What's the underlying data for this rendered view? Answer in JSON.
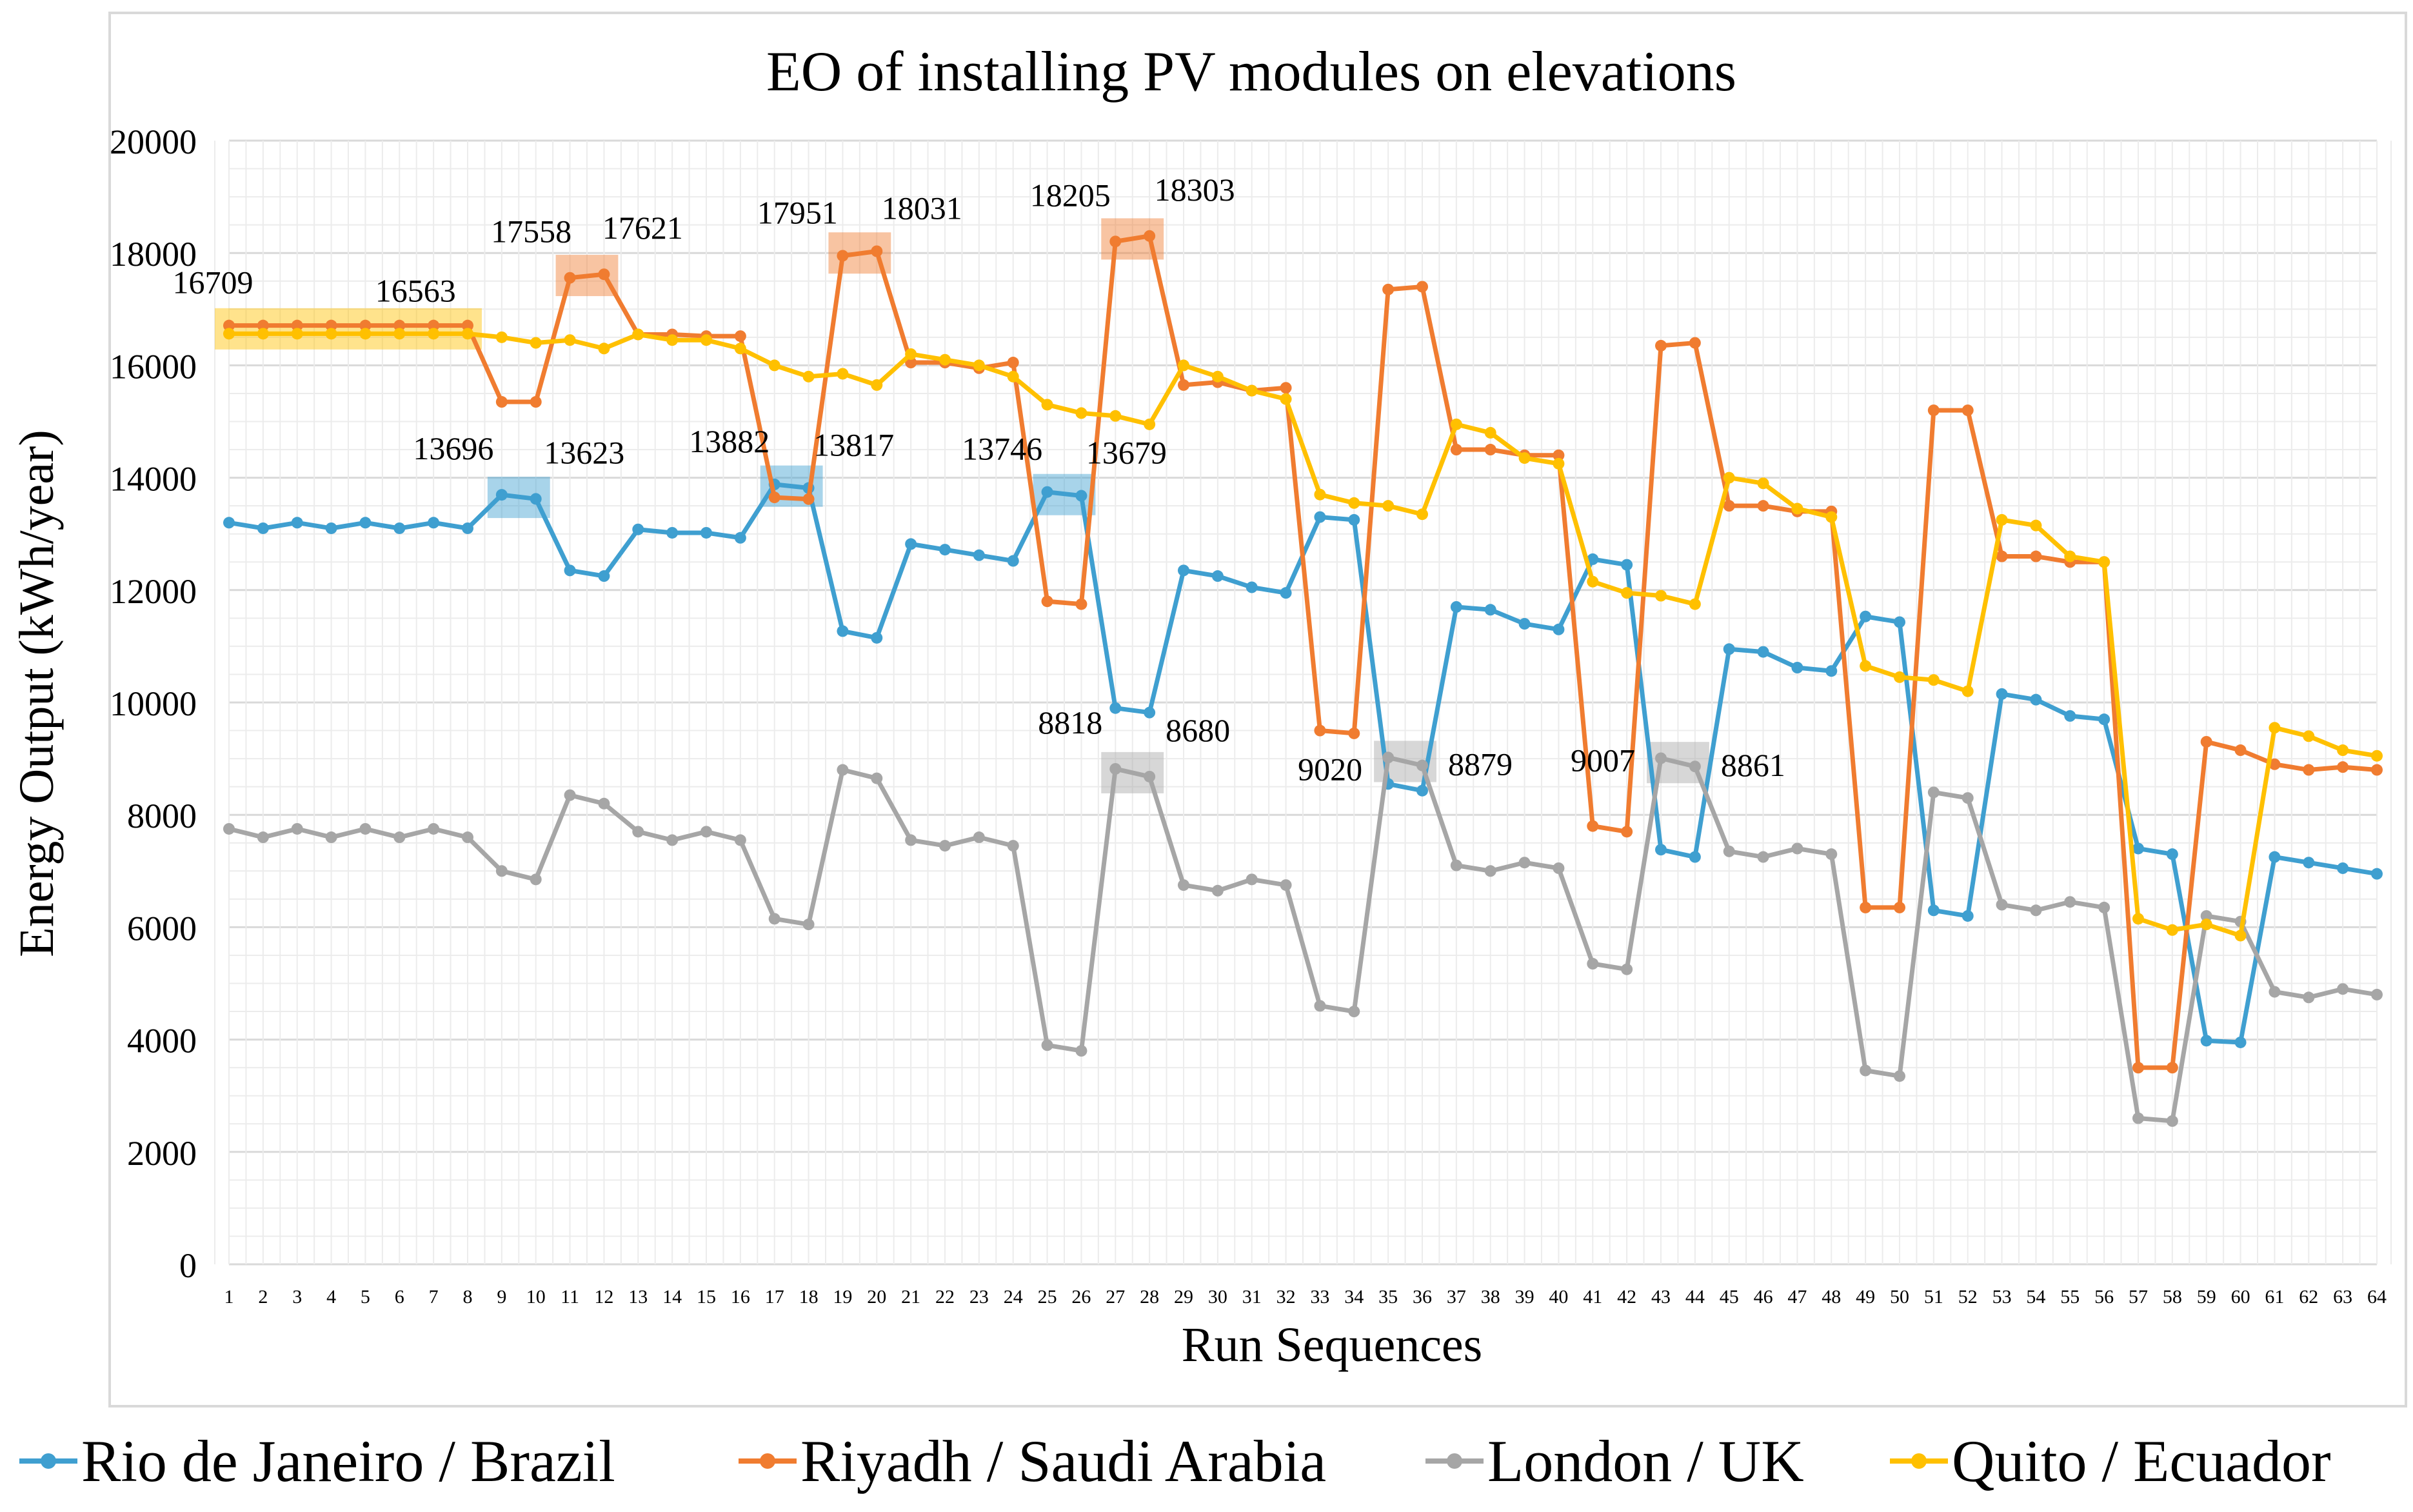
{
  "chart_data": {
    "type": "line",
    "title": "EO of installing  PV modules  on elevations",
    "xlabel": "Run Sequences",
    "ylabel": "Energy Output (kWh/year)",
    "ylim": [
      0,
      20000
    ],
    "yticks": [
      0,
      2000,
      4000,
      6000,
      8000,
      10000,
      12000,
      14000,
      16000,
      18000,
      20000
    ],
    "grid": true,
    "legend_position": "bottom",
    "x": [
      1,
      2,
      3,
      4,
      5,
      6,
      7,
      8,
      9,
      10,
      11,
      12,
      13,
      14,
      15,
      16,
      17,
      18,
      19,
      20,
      21,
      22,
      23,
      24,
      25,
      26,
      27,
      28,
      29,
      30,
      31,
      32,
      33,
      34,
      35,
      36,
      37,
      38,
      39,
      40,
      41,
      42,
      43,
      44,
      45,
      46,
      47,
      48,
      49,
      50,
      51,
      52,
      53,
      54,
      55,
      56,
      57,
      58,
      59,
      60,
      61,
      62,
      63,
      64
    ],
    "series": [
      {
        "name": "Rio de Janeiro / Brazil",
        "color": "#3f9fd0",
        "values": [
          13200,
          13100,
          13200,
          13100,
          13200,
          13100,
          13200,
          13100,
          13696,
          13623,
          12350,
          12250,
          13080,
          13020,
          13020,
          12930,
          13882,
          13817,
          11270,
          11150,
          12820,
          12720,
          12620,
          12520,
          13746,
          13679,
          9900,
          9820,
          12350,
          12250,
          12050,
          11950,
          13300,
          13250,
          8550,
          8430,
          11700,
          11650,
          11400,
          11300,
          12550,
          12450,
          7380,
          7250,
          10950,
          10900,
          10620,
          10560,
          11530,
          11430,
          6300,
          6200,
          10150,
          10050,
          9760,
          9700,
          7400,
          7300,
          3980,
          3950,
          7250,
          7150,
          7050,
          6950
        ]
      },
      {
        "name": "Riyadh / Saudi Arabia",
        "color": "#f07c30",
        "values": [
          16709,
          16709,
          16709,
          16709,
          16709,
          16709,
          16709,
          16709,
          15350,
          15350,
          17558,
          17621,
          16550,
          16550,
          16520,
          16520,
          13650,
          13620,
          17951,
          18031,
          16050,
          16050,
          15950,
          16050,
          11800,
          11750,
          18205,
          18303,
          15650,
          15700,
          15550,
          15600,
          9500,
          9450,
          17350,
          17400,
          14500,
          14500,
          14400,
          14400,
          7800,
          7700,
          16350,
          16400,
          13500,
          13500,
          13400,
          13400,
          6350,
          6350,
          15200,
          15200,
          12600,
          12600,
          12500,
          12500,
          3500,
          3500,
          9300,
          9150,
          8900,
          8800,
          8850,
          8800
        ]
      },
      {
        "name": "London / UK",
        "color": "#a6a6a6",
        "values": [
          7750,
          7600,
          7750,
          7600,
          7750,
          7600,
          7750,
          7600,
          7000,
          6850,
          8350,
          8200,
          7700,
          7550,
          7700,
          7550,
          6150,
          6050,
          8800,
          8650,
          7550,
          7450,
          7600,
          7450,
          3900,
          3800,
          8818,
          8680,
          6750,
          6650,
          6850,
          6750,
          4600,
          4500,
          9020,
          8879,
          7100,
          7000,
          7150,
          7050,
          5350,
          5250,
          9007,
          8861,
          7350,
          7250,
          7400,
          7300,
          3450,
          3350,
          8400,
          8300,
          6400,
          6300,
          6450,
          6350,
          2600,
          2550,
          6200,
          6100,
          4850,
          4750,
          4900,
          4800
        ]
      },
      {
        "name": "Quito / Ecuador",
        "color": "#ffc000",
        "values": [
          16563,
          16563,
          16563,
          16563,
          16563,
          16563,
          16563,
          16563,
          16500,
          16400,
          16450,
          16300,
          16550,
          16450,
          16450,
          16300,
          16000,
          15800,
          15850,
          15650,
          16200,
          16100,
          16000,
          15800,
          15300,
          15150,
          15100,
          14950,
          16000,
          15800,
          15550,
          15400,
          13700,
          13550,
          13500,
          13350,
          14950,
          14800,
          14350,
          14250,
          12150,
          11950,
          11900,
          11750,
          14000,
          13900,
          13450,
          13300,
          10650,
          10450,
          10400,
          10200,
          13250,
          13150,
          12600,
          12500,
          6150,
          5950,
          6050,
          5850,
          9550,
          9400,
          9150,
          9050
        ]
      }
    ],
    "annotations": [
      {
        "text": "16709",
        "x": 1,
        "y": 16709,
        "color": "#ffc000"
      },
      {
        "text": "16563",
        "x": 6,
        "y": 16563,
        "color": "#ffc000"
      },
      {
        "text": "17558",
        "x": 11,
        "y": 17558,
        "color": "#f07c30"
      },
      {
        "text": "17621",
        "x": 12,
        "y": 17621,
        "color": "#f07c30"
      },
      {
        "text": "17951",
        "x": 19,
        "y": 17951,
        "color": "#f07c30"
      },
      {
        "text": "18031",
        "x": 20,
        "y": 18031,
        "color": "#f07c30"
      },
      {
        "text": "18205",
        "x": 27,
        "y": 18205,
        "color": "#f07c30"
      },
      {
        "text": "18303",
        "x": 28,
        "y": 18303,
        "color": "#f07c30"
      },
      {
        "text": "13696",
        "x": 9,
        "y": 13696,
        "color": "#3f9fd0"
      },
      {
        "text": "13623",
        "x": 10,
        "y": 13623,
        "color": "#3f9fd0"
      },
      {
        "text": "13882",
        "x": 17,
        "y": 13882,
        "color": "#3f9fd0"
      },
      {
        "text": "13817",
        "x": 18,
        "y": 13817,
        "color": "#3f9fd0"
      },
      {
        "text": "13746",
        "x": 25,
        "y": 13746,
        "color": "#3f9fd0"
      },
      {
        "text": "13679",
        "x": 26,
        "y": 13679,
        "color": "#3f9fd0"
      },
      {
        "text": "8818",
        "x": 27,
        "y": 8818,
        "color": "#a6a6a6"
      },
      {
        "text": "8680",
        "x": 28,
        "y": 8680,
        "color": "#a6a6a6"
      },
      {
        "text": "9020",
        "x": 35,
        "y": 9020,
        "color": "#a6a6a6"
      },
      {
        "text": "8879",
        "x": 36,
        "y": 8879,
        "color": "#a6a6a6"
      },
      {
        "text": "9007",
        "x": 43,
        "y": 9007,
        "color": "#a6a6a6"
      },
      {
        "text": "8861",
        "x": 44,
        "y": 8861,
        "color": "#a6a6a6"
      }
    ],
    "highlights": [
      {
        "x_from": 1,
        "x_to": 8,
        "y": 16650,
        "color": "#ffc000"
      },
      {
        "x_from": 11,
        "x_to": 12,
        "y": 17600,
        "color": "#f07c30"
      },
      {
        "x_from": 19,
        "x_to": 20,
        "y": 18000,
        "color": "#f07c30"
      },
      {
        "x_from": 27,
        "x_to": 28,
        "y": 18250,
        "color": "#f07c30"
      },
      {
        "x_from": 9,
        "x_to": 10,
        "y": 13650,
        "color": "#3f9fd0"
      },
      {
        "x_from": 17,
        "x_to": 18,
        "y": 13850,
        "color": "#3f9fd0"
      },
      {
        "x_from": 25,
        "x_to": 26,
        "y": 13700,
        "color": "#3f9fd0"
      },
      {
        "x_from": 27,
        "x_to": 28,
        "y": 8750,
        "color": "#a6a6a6"
      },
      {
        "x_from": 35,
        "x_to": 36,
        "y": 8950,
        "color": "#a6a6a6"
      },
      {
        "x_from": 43,
        "x_to": 44,
        "y": 8930,
        "color": "#a6a6a6"
      }
    ]
  }
}
